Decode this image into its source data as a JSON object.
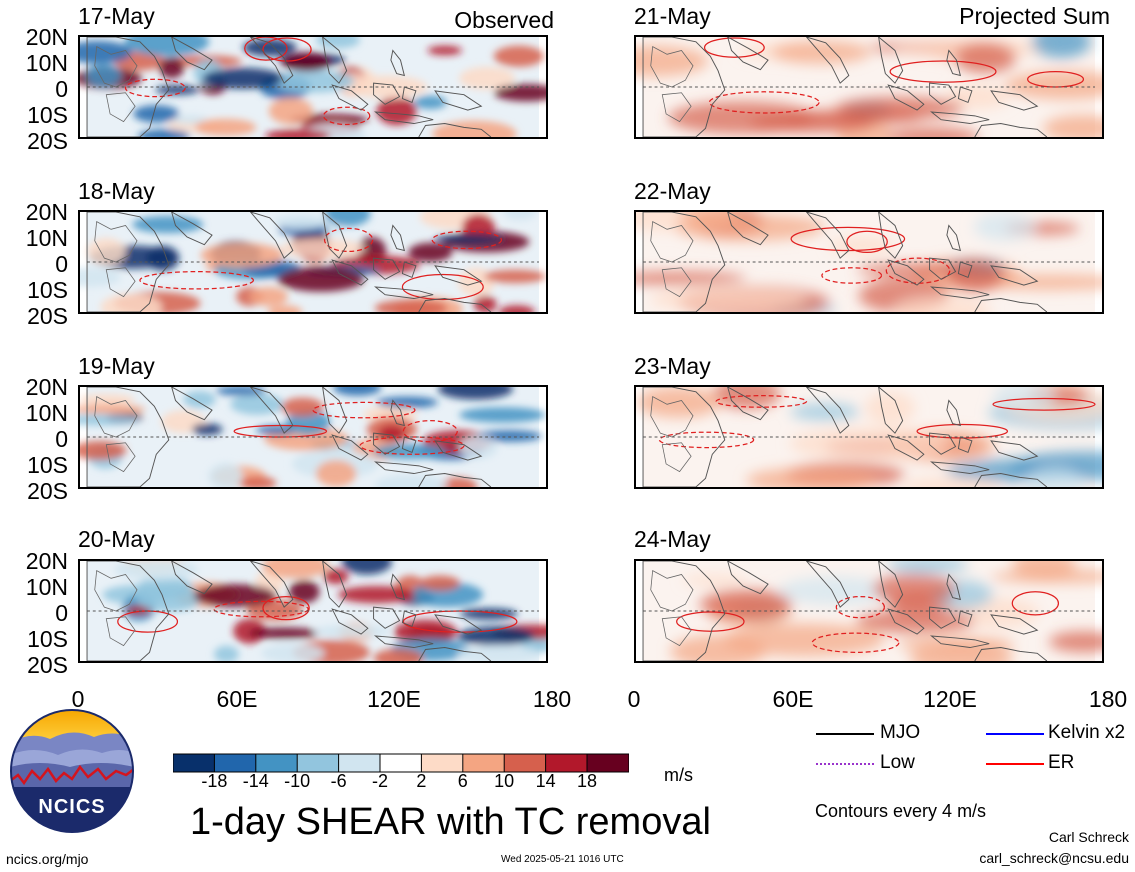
{
  "left_header": "Observed",
  "right_header": "Projected Sum",
  "panels": {
    "left": [
      "17-May",
      "18-May",
      "19-May",
      "20-May"
    ],
    "right": [
      "21-May",
      "22-May",
      "23-May",
      "24-May"
    ]
  },
  "lat_labels": [
    "20N",
    "10N",
    "0",
    "10S",
    "20S"
  ],
  "lon_labels": [
    "0",
    "60E",
    "120E",
    "180"
  ],
  "colorbar": {
    "labels": [
      "-18",
      "-14",
      "-10",
      "-6",
      "-2",
      "2",
      "6",
      "10",
      "14",
      "18"
    ],
    "colors": [
      "#08306b",
      "#2166ac",
      "#4393c3",
      "#92c5de",
      "#d1e5f0",
      "#ffffff",
      "#fddbc7",
      "#f4a582",
      "#d6604d",
      "#b2182b",
      "#67001f"
    ],
    "units": "m/s"
  },
  "title": "1-day SHEAR with TC removal",
  "legend": {
    "items": [
      {
        "label": "MJO",
        "color": "#000000",
        "style": "solid"
      },
      {
        "label": "Kelvin x2",
        "color": "#0000ff",
        "style": "solid"
      },
      {
        "label": "Low",
        "color": "#9933cc",
        "style": "dotted"
      },
      {
        "label": "ER",
        "color": "#ff0000",
        "style": "solid"
      }
    ],
    "note": "Contours every 4 m/s"
  },
  "logo_text": "NCICS",
  "footer": {
    "url": "ncics.org/mjo",
    "timestamp": "Wed 2025-05-21 1016 UTC",
    "author": "Carl Schreck",
    "email": "carl_schreck@ncsu.edu"
  }
}
